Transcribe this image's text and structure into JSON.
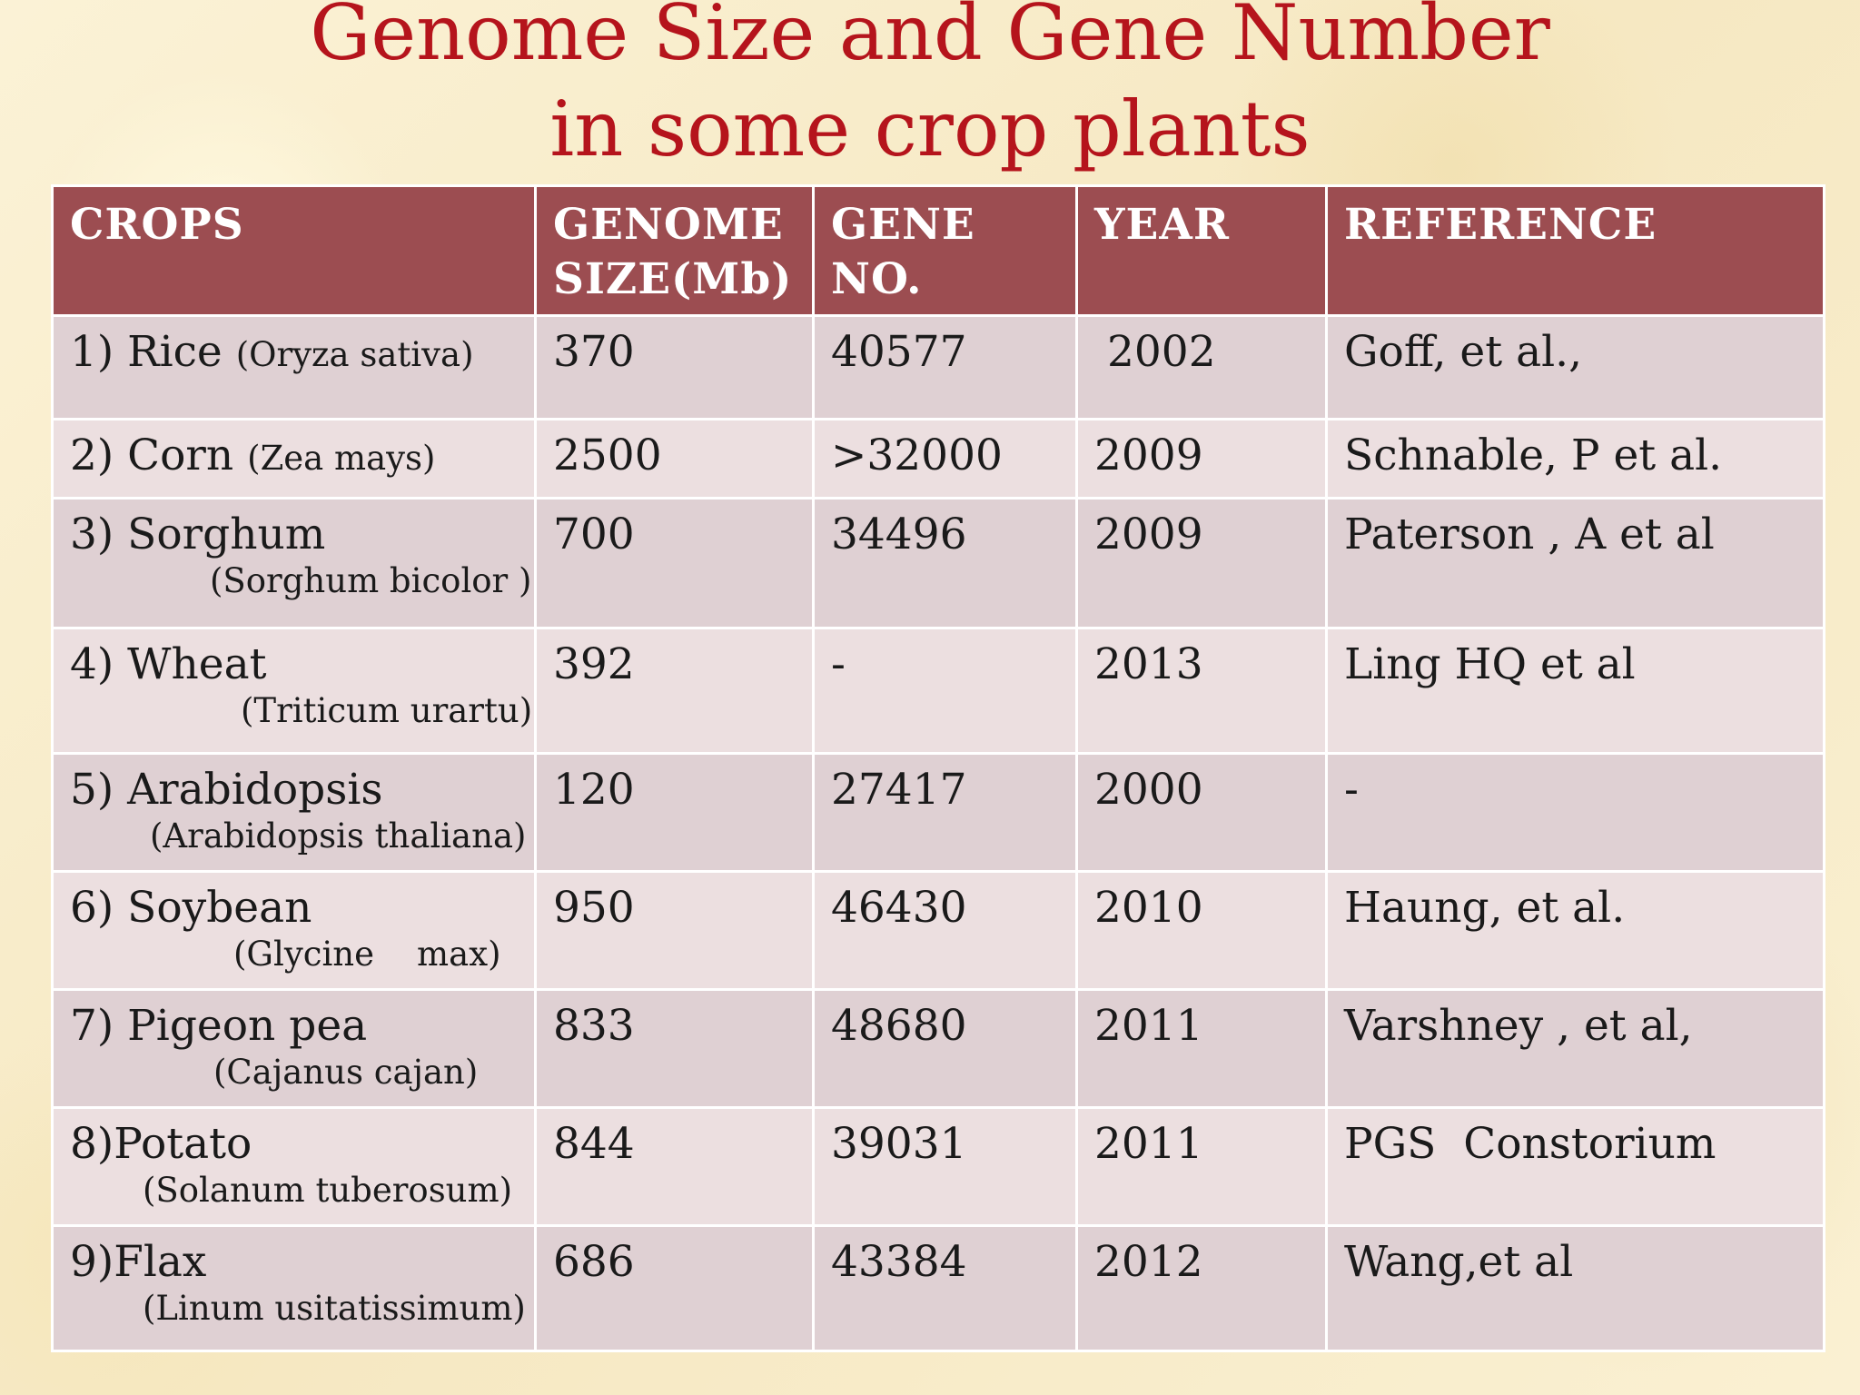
{
  "title": {
    "line1": "Genome Size and Gene Number",
    "line2": "in some crop plants"
  },
  "table": {
    "headers": {
      "crops": "CROPS",
      "genome_size_l1": "GENOME",
      "genome_size_l2": "SIZE(Mb)",
      "gene_no_l1": "GENE",
      "gene_no_l2": "NO.",
      "year": "YEAR",
      "reference": "REFERENCE"
    },
    "rows": [
      {
        "crop": "1) Rice",
        "sci": "(Oryza  sativa)",
        "genome": "370",
        "gene": "40577",
        "year": "2002",
        "ref": "Goff, et al.,"
      },
      {
        "crop": "2) Corn",
        "sci": "(Zea  mays)",
        "genome": "2500",
        "gene": ">32000",
        "year": "2009",
        "ref": "Schnable, P et al."
      },
      {
        "crop": "3) Sorghum",
        "sci": "(Sorghum bicolor )",
        "genome": "700",
        "gene": "34496",
        "year": "2009",
        "ref": "Paterson , A et al"
      },
      {
        "crop": "4) Wheat",
        "sci": "(Triticum urartu)",
        "genome": "392",
        "gene": "-",
        "year": "2013",
        "ref": "Ling HQ et al"
      },
      {
        "crop": "5) Arabidopsis",
        "sci": "(Arabidopsis thaliana)",
        "genome": "120",
        "gene": "27417",
        "year": "2000",
        "ref": "-"
      },
      {
        "crop": "6) Soybean",
        "sci": "(Glycine    max)",
        "genome": "950",
        "gene": "46430",
        "year": "2010",
        "ref": "Haung, et al."
      },
      {
        "crop": "7) Pigeon pea",
        "sci": "(Cajanus cajan)",
        "genome": "833",
        "gene": "48680",
        "year": "2011",
        "ref": "Varshney , et al,"
      },
      {
        "crop": "8)Potato",
        "sci": "(Solanum tuberosum)",
        "genome": "844",
        "gene": "39031",
        "year": "2011",
        "ref": "PGS  Constorium"
      },
      {
        "crop": "9)Flax",
        "sci": "(Linum usitatissimum)",
        "genome": "686",
        "gene": "43384",
        "year": "2012",
        "ref": "Wang,et al"
      }
    ]
  },
  "colors": {
    "title": "#b5141c",
    "header_bg": "#9c4d51",
    "row_odd": "#dfd0d3",
    "row_even": "#ecdfe0"
  }
}
